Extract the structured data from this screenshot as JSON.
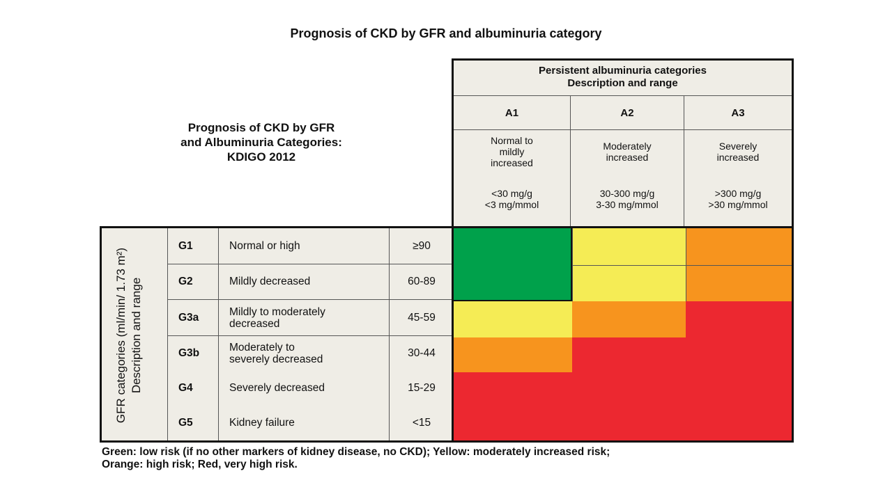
{
  "title": "Prognosis of CKD by GFR and albuminuria category",
  "subtitle": [
    "Prognosis of CKD by GFR",
    "and Albuminuria Categories:",
    "KDIGO 2012"
  ],
  "albuminuria_header": [
    "Persistent albuminuria categories",
    "Description and range"
  ],
  "albuminuria_categories": [
    {
      "code": "A1",
      "desc": [
        "Normal to",
        "mildly",
        "increased"
      ],
      "range": [
        "<30 mg/g",
        "<3 mg/mmol"
      ]
    },
    {
      "code": "A2",
      "desc": [
        "Moderately",
        "increased"
      ],
      "range": [
        "30-300 mg/g",
        "3-30 mg/mmol"
      ]
    },
    {
      "code": "A3",
      "desc": [
        "Severely",
        "increased"
      ],
      "range": [
        ">300 mg/g",
        ">30 mg/mmol"
      ]
    }
  ],
  "gfr_axis_label": [
    "GFR categories (ml/min/ 1.73 m²)",
    "Description and range"
  ],
  "gfr_categories": [
    {
      "code": "G1",
      "desc": [
        "Normal or high"
      ],
      "range": "≥90",
      "risk": [
        "green",
        "yellow",
        "orange"
      ]
    },
    {
      "code": "G2",
      "desc": [
        "Mildly decreased"
      ],
      "range": "60-89",
      "risk": [
        "green",
        "yellow",
        "orange"
      ]
    },
    {
      "code": "G3a",
      "desc": [
        "Mildly to moderately",
        "decreased"
      ],
      "range": "45-59",
      "risk": [
        "yellow",
        "orange",
        "red"
      ]
    },
    {
      "code": "G3b",
      "desc": [
        "Moderately to",
        "severely decreased"
      ],
      "range": "30-44",
      "risk": [
        "orange",
        "red",
        "red"
      ]
    },
    {
      "code": "G4",
      "desc": [
        "Severely decreased"
      ],
      "range": "15-29",
      "risk": [
        "red",
        "red",
        "red"
      ]
    },
    {
      "code": "G5",
      "desc": [
        "Kidney failure"
      ],
      "range": "<15",
      "risk": [
        "red",
        "red",
        "red"
      ]
    }
  ],
  "risk_colors": {
    "green": "#00a14b",
    "yellow": "#f5ec55",
    "orange": "#f7941e",
    "red": "#ec2830"
  },
  "footer": [
    "Green: low risk (if no other markers of kidney disease, no CKD); Yellow: moderately increased risk;",
    "Orange: high risk; Red, very high risk."
  ]
}
